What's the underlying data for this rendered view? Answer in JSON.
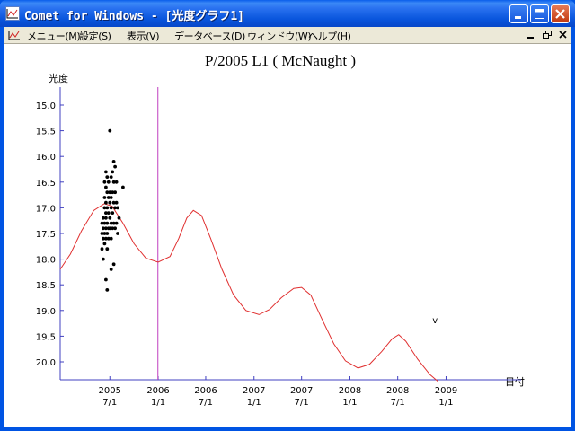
{
  "window": {
    "title": "Comet for Windows - [光度グラフ1]",
    "controls": [
      "minimize",
      "maximize",
      "close"
    ]
  },
  "menu": {
    "items": [
      "メニュー(M)",
      "設定(S)",
      "表示(V)",
      "データベース(D)",
      "ウィンドウ(W)",
      "ヘルプ(H)"
    ]
  },
  "chart_data": {
    "type": "scatter",
    "title": "P/2005 L1 ( McNaught )",
    "ylabel": "光度",
    "xlabel": "日付",
    "yaxis_inverted": true,
    "ylim": [
      15.0,
      20.0
    ],
    "yticks": [
      "15.0",
      "15.5",
      "16.0",
      "16.5",
      "17.0",
      "17.5",
      "18.0",
      "18.5",
      "19.0",
      "19.5",
      "20.0"
    ],
    "xticks": [
      {
        "year": "2005",
        "date": "7/1"
      },
      {
        "year": "2006",
        "date": "1/1"
      },
      {
        "year": "2006",
        "date": "7/1"
      },
      {
        "year": "2007",
        "date": "1/1"
      },
      {
        "year": "2007",
        "date": "7/1"
      },
      {
        "year": "2008",
        "date": "1/1"
      },
      {
        "year": "2008",
        "date": "7/1"
      },
      {
        "year": "2009",
        "date": "1/1"
      }
    ],
    "xrange": [
      "2004-12-24",
      "2009-08-20"
    ],
    "today_line": "2005-12-31",
    "marker_label": "v",
    "curve_color": "#E03030",
    "today_line_color": "#C040C0",
    "observations": [
      [
        "2005-06-01",
        17.3
      ],
      [
        "2005-06-01",
        17.5
      ],
      [
        "2005-06-01",
        17.8
      ],
      [
        "2005-06-06",
        17.2
      ],
      [
        "2005-06-06",
        17.4
      ],
      [
        "2005-06-06",
        17.6
      ],
      [
        "2005-06-06",
        18.0
      ],
      [
        "2005-06-11",
        16.5
      ],
      [
        "2005-06-11",
        16.8
      ],
      [
        "2005-06-11",
        17.0
      ],
      [
        "2005-06-11",
        17.3
      ],
      [
        "2005-06-11",
        17.5
      ],
      [
        "2005-06-11",
        17.7
      ],
      [
        "2005-06-16",
        16.3
      ],
      [
        "2005-06-16",
        16.6
      ],
      [
        "2005-06-16",
        16.9
      ],
      [
        "2005-06-16",
        17.1
      ],
      [
        "2005-06-16",
        17.2
      ],
      [
        "2005-06-16",
        17.4
      ],
      [
        "2005-06-16",
        17.6
      ],
      [
        "2005-06-16",
        18.4
      ],
      [
        "2005-06-21",
        16.4
      ],
      [
        "2005-06-21",
        16.7
      ],
      [
        "2005-06-21",
        17.0
      ],
      [
        "2005-06-21",
        17.3
      ],
      [
        "2005-06-21",
        17.5
      ],
      [
        "2005-06-21",
        17.8
      ],
      [
        "2005-06-21",
        18.6
      ],
      [
        "2005-06-26",
        16.5
      ],
      [
        "2005-06-26",
        16.8
      ],
      [
        "2005-06-26",
        17.1
      ],
      [
        "2005-06-26",
        17.4
      ],
      [
        "2005-06-26",
        17.6
      ],
      [
        "2005-07-01",
        15.5
      ],
      [
        "2005-07-01",
        16.7
      ],
      [
        "2005-07-01",
        16.9
      ],
      [
        "2005-07-01",
        17.2
      ],
      [
        "2005-07-01",
        17.4
      ],
      [
        "2005-07-06",
        16.4
      ],
      [
        "2005-07-06",
        16.8
      ],
      [
        "2005-07-06",
        17.0
      ],
      [
        "2005-07-06",
        17.3
      ],
      [
        "2005-07-06",
        17.6
      ],
      [
        "2005-07-06",
        18.2
      ],
      [
        "2005-07-11",
        16.3
      ],
      [
        "2005-07-11",
        16.7
      ],
      [
        "2005-07-11",
        17.1
      ],
      [
        "2005-07-11",
        17.4
      ],
      [
        "2005-07-16",
        16.1
      ],
      [
        "2005-07-16",
        16.5
      ],
      [
        "2005-07-16",
        16.9
      ],
      [
        "2005-07-16",
        17.3
      ],
      [
        "2005-07-16",
        18.1
      ],
      [
        "2005-07-21",
        16.2
      ],
      [
        "2005-07-21",
        16.7
      ],
      [
        "2005-07-21",
        17.0
      ],
      [
        "2005-07-21",
        17.4
      ],
      [
        "2005-07-26",
        16.5
      ],
      [
        "2005-07-26",
        16.9
      ],
      [
        "2005-07-26",
        17.3
      ],
      [
        "2005-07-31",
        17.0
      ],
      [
        "2005-07-31",
        17.5
      ],
      [
        "2005-08-05",
        17.2
      ],
      [
        "2005-08-20",
        16.6
      ]
    ],
    "predicted_curve": [
      [
        "2004-12-24",
        18.2
      ],
      [
        "2005-02-01",
        17.9
      ],
      [
        "2005-03-15",
        17.45
      ],
      [
        "2005-05-01",
        17.05
      ],
      [
        "2005-06-10",
        16.92
      ],
      [
        "2005-07-10",
        16.97
      ],
      [
        "2005-08-20",
        17.3
      ],
      [
        "2005-10-01",
        17.7
      ],
      [
        "2005-11-15",
        17.98
      ],
      [
        "2006-01-01",
        18.06
      ],
      [
        "2006-02-15",
        17.95
      ],
      [
        "2006-03-20",
        17.6
      ],
      [
        "2006-04-20",
        17.2
      ],
      [
        "2006-05-15",
        17.05
      ],
      [
        "2006-06-15",
        17.15
      ],
      [
        "2006-07-20",
        17.6
      ],
      [
        "2006-09-01",
        18.2
      ],
      [
        "2006-10-15",
        18.7
      ],
      [
        "2006-12-01",
        19.0
      ],
      [
        "2007-01-20",
        19.08
      ],
      [
        "2007-03-01",
        18.98
      ],
      [
        "2007-04-15",
        18.75
      ],
      [
        "2007-06-01",
        18.57
      ],
      [
        "2007-07-01",
        18.55
      ],
      [
        "2007-08-05",
        18.7
      ],
      [
        "2007-09-15",
        19.15
      ],
      [
        "2007-11-01",
        19.65
      ],
      [
        "2007-12-15",
        19.98
      ],
      [
        "2008-02-01",
        20.12
      ],
      [
        "2008-03-15",
        20.05
      ],
      [
        "2008-05-01",
        19.8
      ],
      [
        "2008-06-10",
        19.55
      ],
      [
        "2008-07-05",
        19.47
      ],
      [
        "2008-08-01",
        19.6
      ],
      [
        "2008-09-15",
        19.95
      ],
      [
        "2008-11-01",
        20.25
      ],
      [
        "2008-12-01",
        20.38
      ]
    ]
  }
}
